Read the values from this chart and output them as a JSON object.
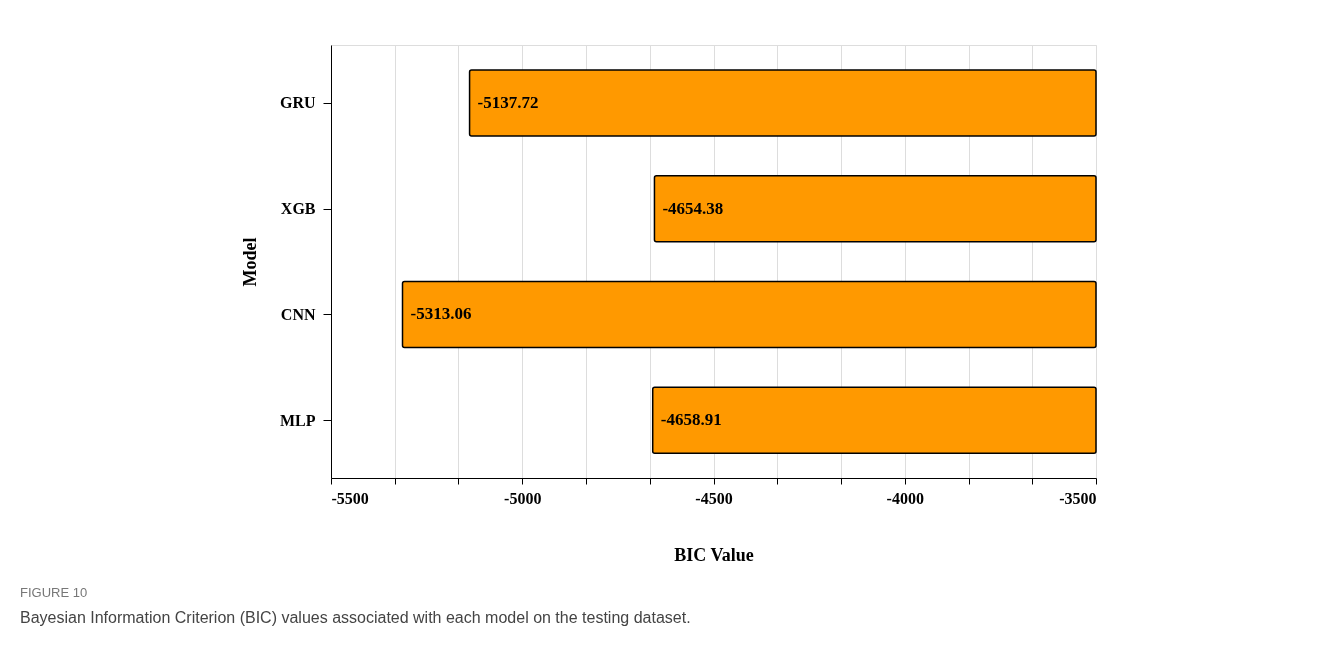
{
  "chart_data": {
    "type": "bar",
    "orientation": "horizontal",
    "xlabel": "BIC Value",
    "ylabel": "Model",
    "categories": [
      "GRU",
      "XGB",
      "CNN",
      "MLP"
    ],
    "values": [
      -5137.72,
      -4654.38,
      -5313.06,
      -4658.91
    ],
    "color": "#ff9900",
    "data_labels": true,
    "grid": "x",
    "xlim": [
      -5500,
      -3500
    ],
    "xticks": [
      -5500,
      {
        "value": -5333.33,
        "label": null
      },
      {
        "value": -5166.67,
        "label": null
      },
      -5000,
      {
        "value": -4833.33,
        "label": null
      },
      {
        "value": -4666.67,
        "label": null
      },
      -4500,
      {
        "value": -4333.33,
        "label": null
      },
      {
        "value": -4166.67,
        "label": null
      },
      -4000,
      {
        "value": -3833.33,
        "label": null
      },
      {
        "value": -3666.67,
        "label": null
      },
      -3500
    ],
    "annotations": [
      "FIGURE 10",
      "Bayesian Information Criterion (BIC) values associated with each model on the testing dataset."
    ]
  }
}
